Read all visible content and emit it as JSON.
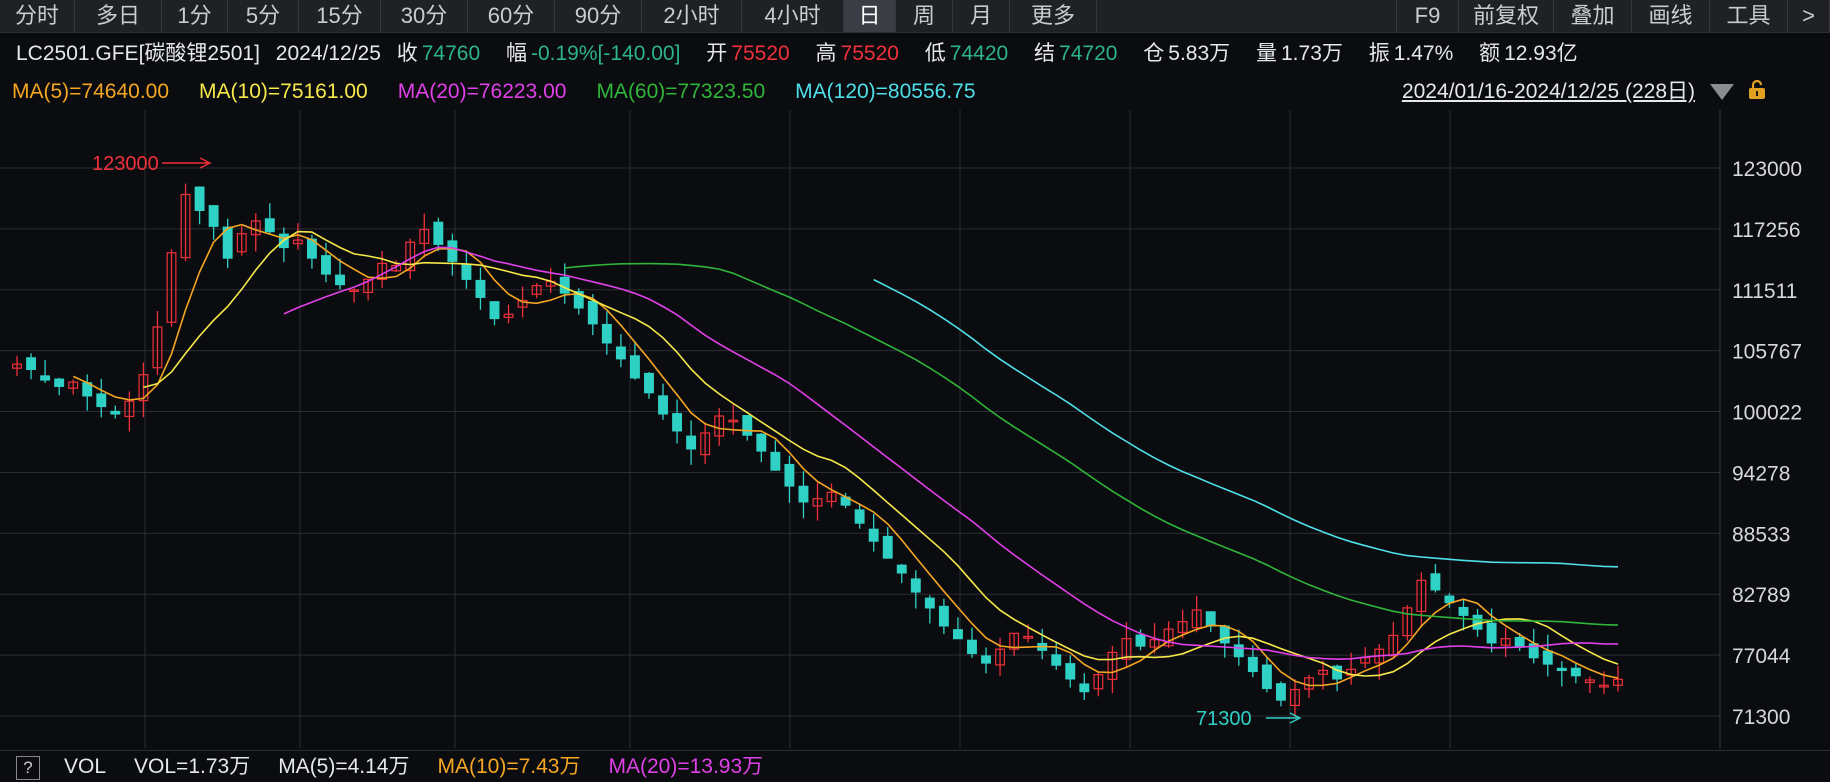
{
  "toolbar": {
    "periods": [
      "分时",
      "多日",
      "1分",
      "5分",
      "15分",
      "30分",
      "60分",
      "90分",
      "2小时",
      "4小时",
      "日",
      "周",
      "月",
      "更多"
    ],
    "active": "日",
    "right": [
      "F9",
      "前复权",
      "叠加",
      "画线",
      "工具",
      ">"
    ]
  },
  "info": {
    "code": "LC2501.GFE[碳酸锂2501]",
    "date": "2024/12/25",
    "close_label": "收",
    "close": "74760",
    "change_label": "幅",
    "change": "-0.19%[-140.00]",
    "open_label": "开",
    "open": "75520",
    "high_label": "高",
    "high": "75520",
    "low_label": "低",
    "low": "74420",
    "settle_label": "结",
    "settle": "74720",
    "oi_label": "仓",
    "oi": "5.83万",
    "vol_label": "量",
    "vol": "1.73万",
    "amp_label": "振",
    "amp": "1.47%",
    "amt_label": "额",
    "amt": "12.93亿"
  },
  "ma": [
    {
      "label": "MA(5)=74640.00",
      "color": "#f5a623"
    },
    {
      "label": "MA(10)=75161.00",
      "color": "#f6e84a"
    },
    {
      "label": "MA(20)=76223.00",
      "color": "#e040e8"
    },
    {
      "label": "MA(60)=77323.50",
      "color": "#2fb53a"
    },
    {
      "label": "MA(120)=80556.75",
      "color": "#4fdfe8"
    }
  ],
  "range": "2024/01/16-2024/12/25 (228日)",
  "annotations": {
    "high": "123000",
    "low": "71300"
  },
  "colors": {
    "up": "#f0303a",
    "down": "#2fd1c5",
    "grid": "#2a2d33",
    "axis_text": "#d6d8dc"
  },
  "chart_data": {
    "type": "candlestick",
    "y_ticks": [
      "123000",
      "117256",
      "111511",
      "105767",
      "100022",
      "94278",
      "88533",
      "82789",
      "77044",
      "71300"
    ],
    "ylim": [
      71300,
      123000
    ],
    "close_series": [
      104500,
      104000,
      103000,
      102400,
      102800,
      101500,
      100500,
      99800,
      101000,
      103500,
      108000,
      115000,
      120500,
      119000,
      117500,
      114500,
      116800,
      118000,
      117000,
      115500,
      116200,
      114500,
      113000,
      112000,
      111500,
      112500,
      114000,
      113800,
      116000,
      117200,
      115800,
      114200,
      112500,
      110800,
      108800,
      109200,
      110500,
      111900,
      112300,
      111200,
      109800,
      108300,
      106500,
      105000,
      103200,
      101800,
      99800,
      98200,
      96500,
      98000,
      99600,
      99200,
      97800,
      96300,
      94500,
      93000,
      91500,
      91800,
      92400,
      91200,
      89500,
      87800,
      86200,
      84800,
      83000,
      81500,
      79800,
      78600,
      77200,
      76300,
      77600,
      79100,
      78800,
      77500,
      76100,
      74800,
      73600,
      75200,
      77300,
      78600,
      77900,
      78500,
      79500,
      80200,
      81300,
      79800,
      78200,
      76900,
      75500,
      73900,
      72800,
      73800,
      74900,
      75600,
      74800,
      75700,
      76800,
      77600,
      78900,
      81500,
      84100,
      83200,
      82000,
      80800,
      79500,
      78200,
      78600,
      77800,
      76800,
      76200,
      75600,
      75100,
      74700,
      74200,
      74760
    ],
    "ma_lines": [
      "MA(5)",
      "MA(10)",
      "MA(20)",
      "MA(60)",
      "MA(120)"
    ]
  },
  "volume": {
    "help": "?",
    "items": [
      {
        "label": "VOL",
        "color": "#e6e8eb"
      },
      {
        "label": "VOL=1.73万",
        "color": "#e6e8eb"
      },
      {
        "label": "MA(5)=4.14万",
        "color": "#e6e8eb"
      },
      {
        "label": "MA(10)=7.43万",
        "color": "#f5a623"
      },
      {
        "label": "MA(20)=13.93万",
        "color": "#e040e8"
      }
    ]
  }
}
